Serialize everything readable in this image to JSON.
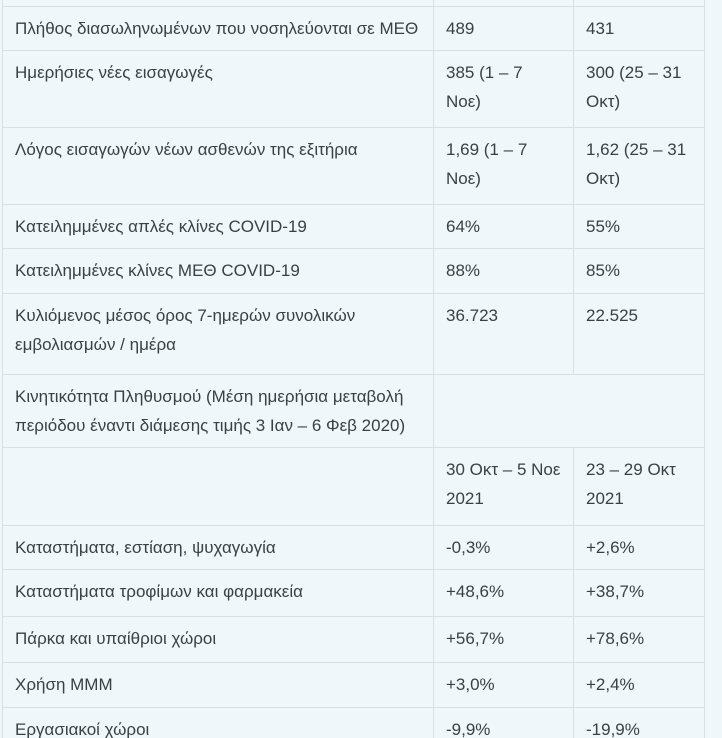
{
  "page": {
    "background_color": "#eff7fa",
    "border_color": "#d8e0e4",
    "text_color": "#3b4045",
    "language": "el"
  },
  "table": {
    "rows": [
      {
        "label": "",
        "col2": "",
        "col3": ""
      },
      {
        "label": "Πλήθος διασωληνωμένων που νοσηλεύονται σε ΜΕΘ",
        "col2": "489",
        "col3": "431"
      },
      {
        "label": "Ημερήσιες νέες εισαγωγές",
        "col2": "385 (1 – 7 Νοε)",
        "col3": "300 (25 – 31 Οκτ)"
      },
      {
        "label": "Λόγος εισαγωγών νέων ασθενών της εξιτήρια",
        "col2": "1,69 (1 – 7 Νοε)",
        "col3": "1,62 (25 – 31 Οκτ)"
      },
      {
        "label": "Κατειλημμένες απλές κλίνες COVID-19",
        "col2": "64%",
        "col3": "55%"
      },
      {
        "label": "Κατειλημμένες κλίνες ΜΕΘ COVID-19",
        "col2": "88%",
        "col3": "85%"
      },
      {
        "label": "Κυλιόμενος μέσος όρος 7-ημερών συνολικών εμβολιασμών / ημέρα",
        "col2": "36.723",
        "col3": "22.525"
      },
      {
        "label": "Κινητικότητα Πληθυσμού (Μέση ημερήσια μεταβολή περιόδου έναντι  διάμεσης τιμής 3 Ιαν – 6 Φεβ 2020)",
        "col2": "",
        "col3": ""
      },
      {
        "label": "",
        "col2": "30 Οκτ – 5 Νοε 2021",
        "col3": "23 – 29 Οκτ 2021"
      },
      {
        "label": "Καταστήματα, εστίαση, ψυχαγωγία",
        "col2": "-0,3%",
        "col3": "+2,6%"
      },
      {
        "label": "Καταστήματα τροφίμων και φαρμακεία",
        "col2": "+48,6%",
        "col3": "+38,7%"
      },
      {
        "label": "Πάρκα και υπαίθριοι χώροι",
        "col2": "+56,7%",
        "col3": "+78,6%"
      },
      {
        "label": "Χρήση ΜΜΜ",
        "col2": "+3,0%",
        "col3": "+2,4%"
      },
      {
        "label": "Εργασιακοί χώροι",
        "col2": "-9,9%",
        "col3": "-19,9%"
      }
    ]
  }
}
